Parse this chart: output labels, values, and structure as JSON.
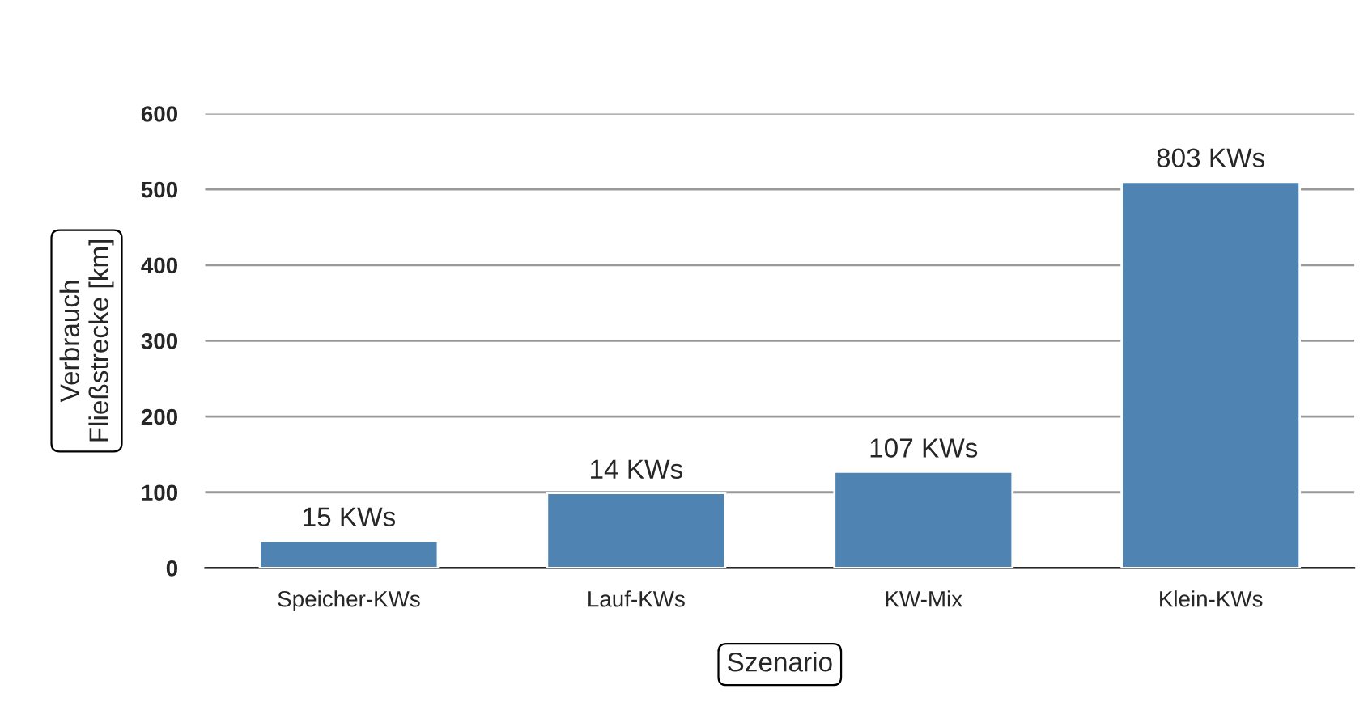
{
  "chart_data": {
    "type": "bar",
    "xlabel": "Szenario",
    "ylabel": "Verbrauch\nFließstrecke [km]",
    "categories": [
      "Speicher-KWs",
      "Lauf-KWs",
      "KW-Mix",
      "Klein-KWs"
    ],
    "values": [
      36,
      99,
      127,
      510
    ],
    "annotations": [
      "15 KWs",
      "14 KWs",
      "107 KWs",
      "803 KWs"
    ],
    "color": "#4e83b2",
    "ylim": [
      0,
      600
    ],
    "yticks": [
      0,
      100,
      200,
      300,
      400,
      500,
      600
    ],
    "grid": "y"
  }
}
